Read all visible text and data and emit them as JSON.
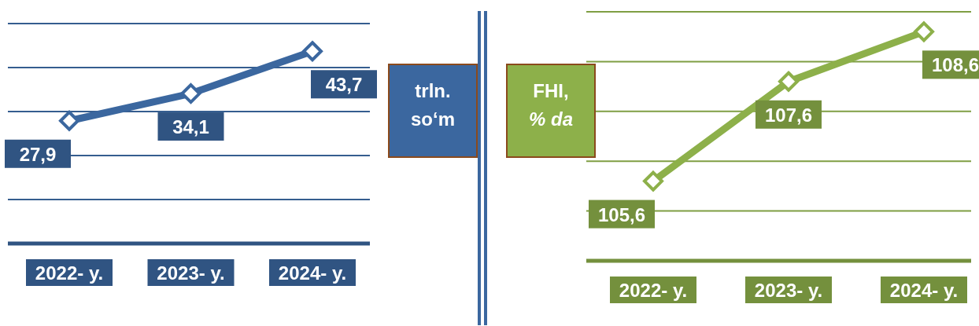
{
  "chart_data": [
    {
      "type": "line",
      "ylabel": "trln. so‘m",
      "categories": [
        "2022- y.",
        "2023- y.",
        "2024- y."
      ],
      "series": [
        {
          "color": "#3b679f",
          "values": [
            27.9,
            34.1,
            43.7
          ],
          "value_labels": [
            "27,9",
            "34,1",
            "43,7"
          ]
        }
      ],
      "ylim": [
        0,
        50
      ],
      "yticks": [
        {
          "value": 0,
          "label": null
        },
        {
          "value": 10,
          "label": null
        },
        {
          "value": 20,
          "label": null
        },
        {
          "value": 30,
          "label": null
        },
        {
          "value": 40,
          "label": null
        },
        {
          "value": 50,
          "label": null
        }
      ],
      "grid": "y",
      "tick_labels": "x",
      "marker": "diamond",
      "line_style": "solid"
    },
    {
      "type": "line",
      "ylabel": "FHI, % da",
      "categories": [
        "2022- y.",
        "2023- y.",
        "2024- y."
      ],
      "series": [
        {
          "color": "#8db04a",
          "values": [
            105.6,
            107.6,
            108.6
          ],
          "value_labels": [
            "105,6",
            "107,6",
            "108,6"
          ]
        }
      ],
      "ylim": [
        104,
        109
      ],
      "yticks": [
        {
          "value": 104,
          "label": null
        },
        {
          "value": 105,
          "label": null
        },
        {
          "value": 106,
          "label": null
        },
        {
          "value": 107,
          "label": null
        },
        {
          "value": 108,
          "label": null
        },
        {
          "value": 109,
          "label": null
        }
      ],
      "grid": "y",
      "tick_labels": "x",
      "marker": "diamond",
      "line_style": "solid"
    }
  ]
}
